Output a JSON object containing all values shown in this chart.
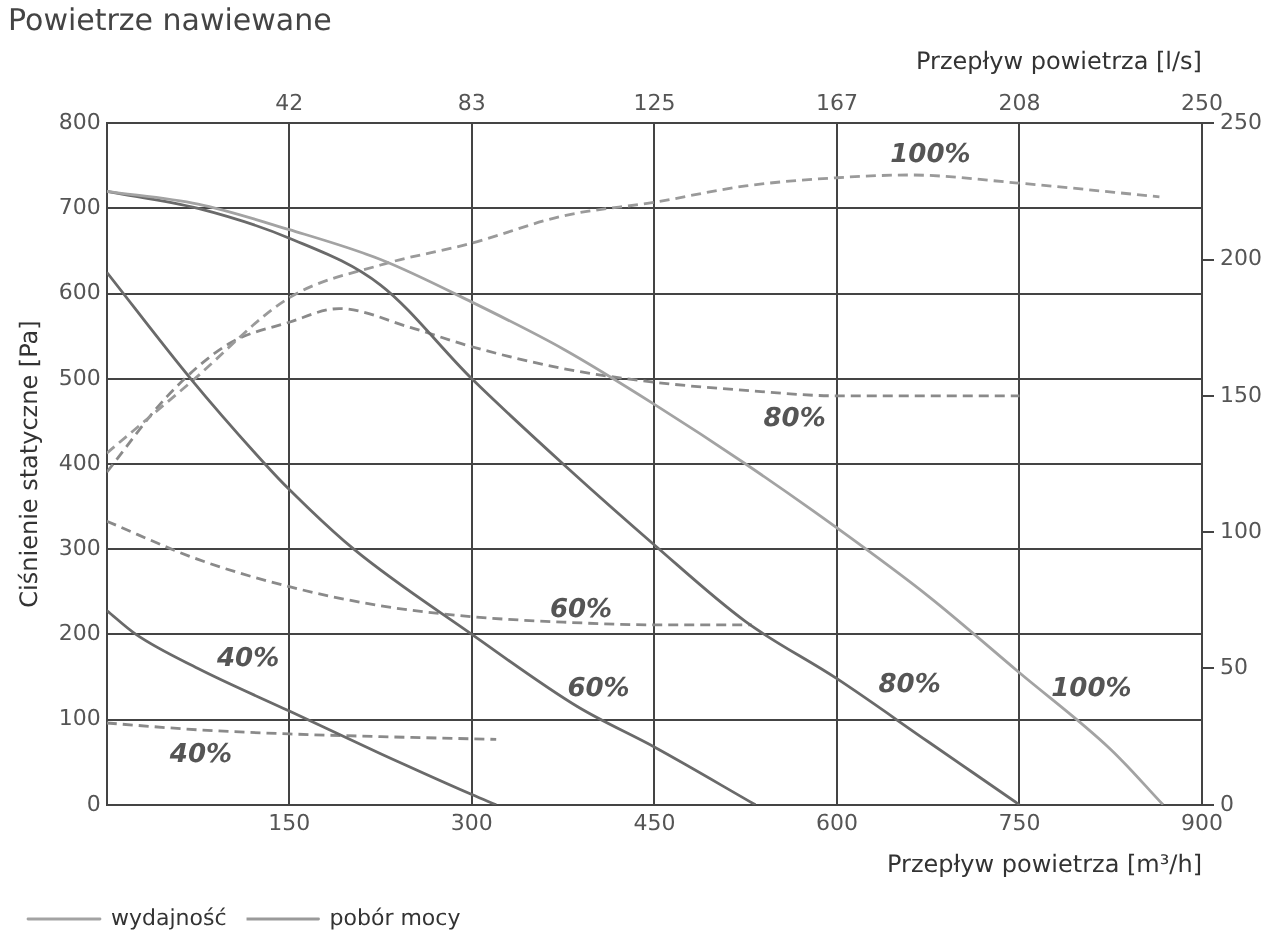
{
  "chart_data": {
    "type": "line",
    "title": "Powietrze nawiewane",
    "xlabel": "Przepływ powietrza [m³/h]",
    "x2label": "Przepływ powietrza [l/s]",
    "ylabel": "Ciśnienie statyczne [Pa]",
    "xlim": [
      0,
      900
    ],
    "xticks": [
      150,
      300,
      450,
      600,
      750,
      900
    ],
    "x2lim": [
      0,
      250
    ],
    "x2ticks": [
      {
        "value": 41.67,
        "label": "42"
      },
      {
        "value": 83.33,
        "label": "83"
      },
      125,
      {
        "value": 166.67,
        "label": "167"
      },
      {
        "value": 208.33,
        "label": "208"
      },
      250
    ],
    "ylim": [
      0,
      800
    ],
    "yticks": [
      0,
      100,
      200,
      300,
      400,
      500,
      600,
      700,
      800
    ],
    "y2lim": [
      0,
      250
    ],
    "y2ticks": [
      0,
      50,
      100,
      150,
      200,
      250
    ],
    "grid": true,
    "legend": "bottom left",
    "marker": "none",
    "series": [
      {
        "name": "wydajność",
        "color": "#a3a3a3",
        "line_style": "solid",
        "x": [
          0,
          75,
          150,
          225,
          300,
          375,
          450,
          525,
          600,
          675,
          750,
          825,
          868
        ],
        "values": [
          720,
          705,
          675,
          640,
          590,
          535,
          470,
          400,
          325,
          245,
          155,
          65,
          0
        ]
      },
      {
        "color": "#6a6a6a",
        "line_style": "solid",
        "x": [
          0,
          75,
          150,
          225,
          300,
          375,
          450,
          525,
          600,
          675,
          750
        ],
        "values": [
          720,
          700,
          665,
          610,
          500,
          400,
          305,
          215,
          148,
          74,
          0
        ]
      },
      {
        "color": "#6a6a6a",
        "line_style": "solid",
        "x": [
          0,
          69,
          130,
          150,
          203,
          300,
          387,
          451,
          533
        ],
        "values": [
          625,
          500,
          400,
          370,
          300,
          200,
          115,
          67,
          0
        ]
      },
      {
        "color": "#6a6a6a",
        "line_style": "solid",
        "x": [
          0,
          24,
          75,
          150,
          225,
          300,
          320
        ],
        "values": [
          228,
          200,
          160,
          110,
          60,
          12,
          0
        ]
      },
      {
        "name": "pobór mocy",
        "color": "#9a9a9a",
        "line_style": "dashed",
        "axis": "y2",
        "x": [
          0,
          69,
          150,
          225,
          300,
          375,
          450,
          525,
          600,
          660,
          750,
          865
        ],
        "values": [
          129,
          155,
          186,
          198,
          206,
          216,
          221,
          227,
          230,
          231,
          228,
          223
        ]
      },
      {
        "color": "#8a8a8a",
        "line_style": "dashed",
        "axis": "y2",
        "x": [
          0,
          50,
          100,
          150,
          191,
          250,
          300,
          375,
          450,
          525,
          600,
          750
        ],
        "values": [
          122,
          150,
          169,
          177,
          182,
          175,
          168,
          160,
          155,
          152,
          150,
          150
        ]
      },
      {
        "color": "#8a8a8a",
        "line_style": "dashed",
        "axis": "y2",
        "x": [
          0,
          75,
          150,
          225,
          300,
          375,
          450,
          530
        ],
        "values": [
          104,
          90,
          80,
          73,
          69,
          67,
          66,
          66
        ]
      },
      {
        "color": "#8a8a8a",
        "line_style": "dashed",
        "axis": "y2",
        "x": [
          0,
          75,
          150,
          225,
          320
        ],
        "values": [
          30,
          27.5,
          26,
          25,
          24
        ]
      }
    ],
    "annotations": [
      "100%",
      "80%",
      "60%",
      "40%",
      "40%",
      "60%",
      "80%",
      "100%"
    ]
  }
}
